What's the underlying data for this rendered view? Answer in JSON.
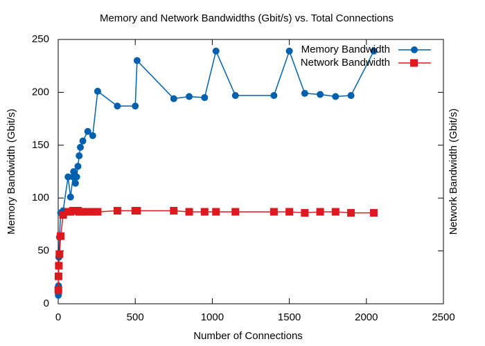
{
  "chart_data": {
    "type": "line",
    "title": "Memory and Network Bandwidths (Gbit/s) vs. Total Connections",
    "xlabel": "Number of Connections",
    "ylabel": "Memory Bandwidth (Gbit/s)",
    "y2label": "Network Bandwidth (Gbit/s)",
    "ylabel_color": "#9400d3",
    "y2label_color": "#009e73",
    "x": [
      1,
      2,
      4,
      8,
      16,
      32,
      64,
      80,
      96,
      100,
      112,
      120,
      128,
      136,
      144,
      160,
      192,
      224,
      256,
      384,
      500,
      512,
      750,
      850,
      950,
      1024,
      1150,
      1400,
      1500,
      1600,
      1700,
      1800,
      1900,
      2048
    ],
    "series": [
      {
        "name": "Memory Bandwidth",
        "color": "#0060ad",
        "marker": "circle",
        "values": [
          8,
          17,
          44,
          63,
          86,
          88,
          120,
          101,
          120,
          125,
          114,
          120,
          130,
          140,
          148,
          154,
          163,
          159,
          201,
          187,
          187,
          230,
          194,
          196,
          195,
          239,
          197,
          197,
          239,
          199,
          198,
          196,
          197,
          239
        ]
      },
      {
        "name": "Network Bandwidth",
        "color": "#dd181f",
        "marker": "square",
        "values": [
          13,
          26,
          36,
          47,
          64,
          84,
          87,
          87,
          88,
          88,
          88,
          88,
          88,
          87,
          87,
          87,
          87,
          87,
          87,
          88,
          88,
          88,
          88,
          87,
          87,
          87,
          87,
          87,
          87,
          86,
          87,
          87,
          86,
          86
        ]
      }
    ],
    "xlim": [
      0,
      2500
    ],
    "xticks": [
      0,
      500,
      1000,
      1500,
      2000,
      2500
    ],
    "ylim": [
      0,
      250
    ],
    "yticks": [
      0,
      50,
      100,
      150,
      200,
      250
    ],
    "grid": false,
    "legend": "top-right"
  }
}
